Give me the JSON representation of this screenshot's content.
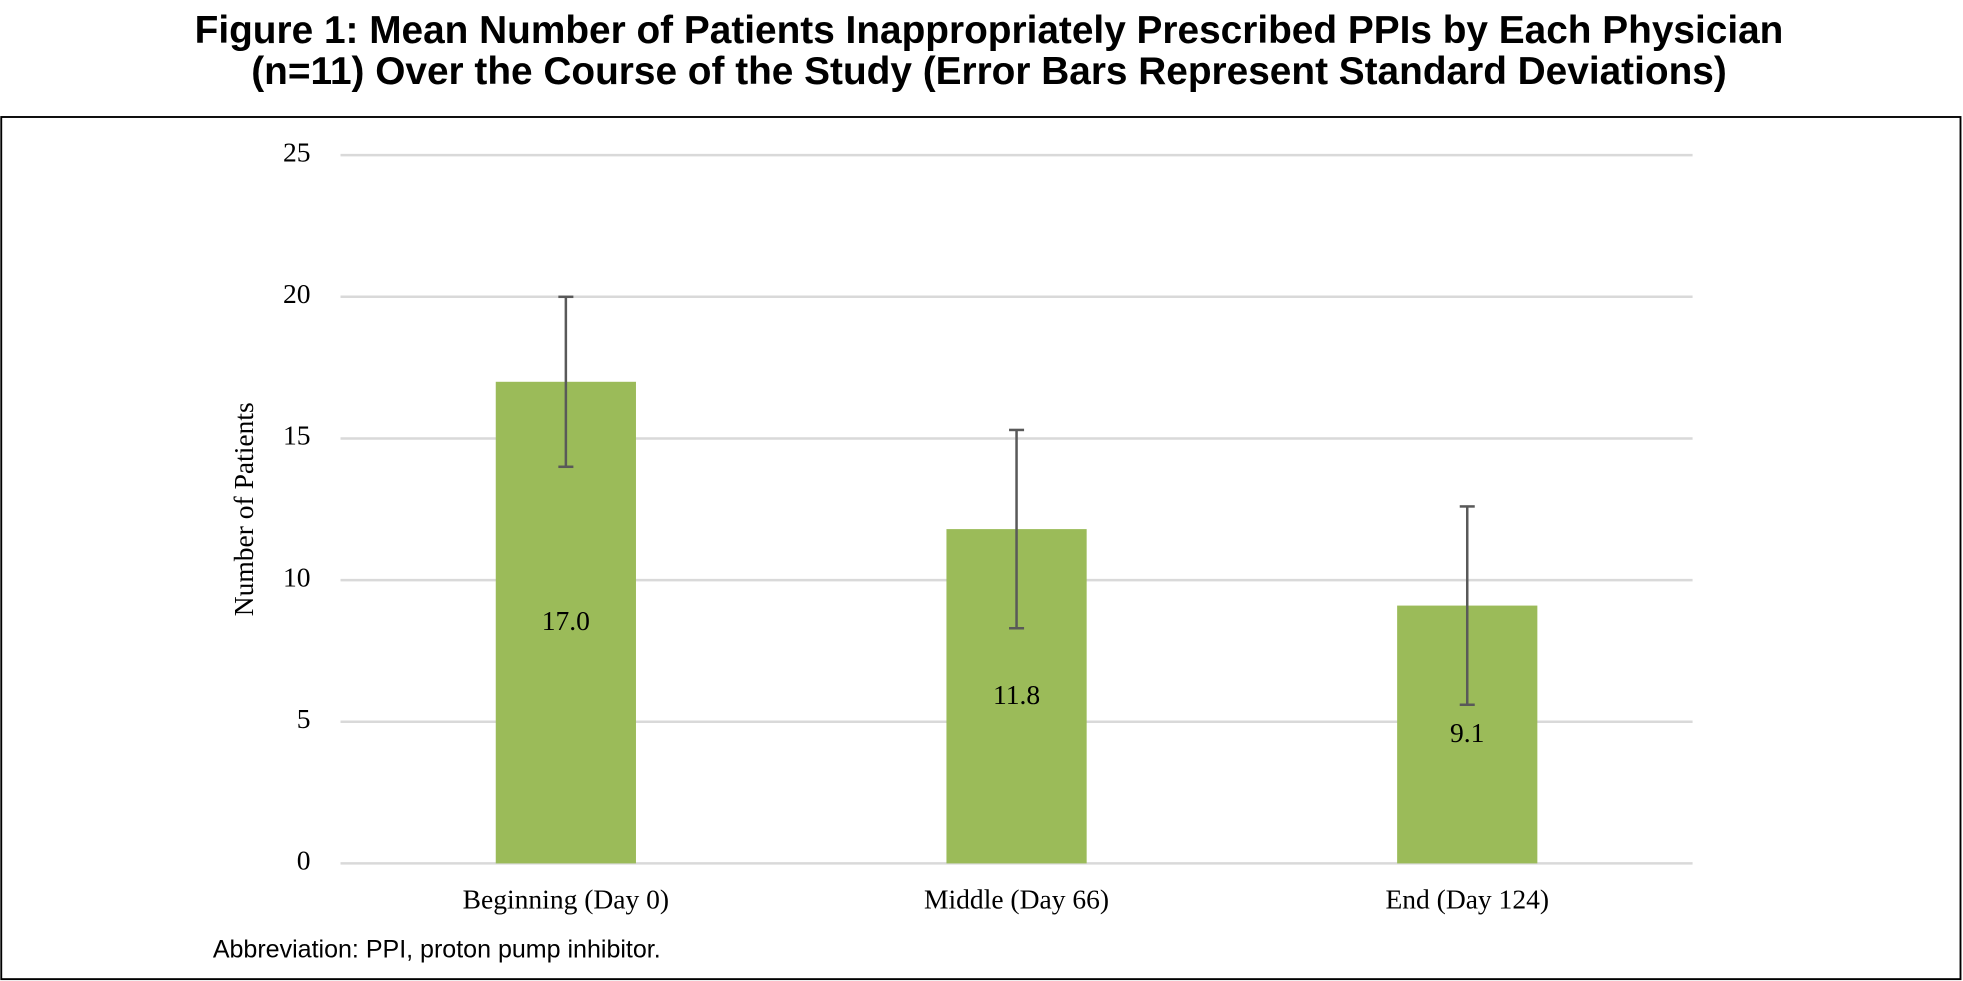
{
  "chart_data": {
    "type": "bar",
    "title": [
      "Figure 1: Mean Number of Patients Inappropriately Prescribed PPIs by Each Physician",
      "(n=11) Over the Course of the Study (Error Bars Represent Standard Deviations)"
    ],
    "y_label": "Number of Patients",
    "categories": [
      "Beginning (Day 0)",
      "Middle (Day 66)",
      "End (Day 124)"
    ],
    "values": [
      17.0,
      11.8,
      9.1
    ],
    "value_labels": [
      "17.0",
      "11.8",
      "9.1"
    ],
    "errors": [
      3.0,
      3.5,
      3.5
    ],
    "color": "#9bbb59",
    "error_color": "#595959",
    "ylim": [
      0,
      25
    ],
    "yticks": [
      0,
      5,
      10,
      15,
      20,
      25
    ],
    "grid": true,
    "footnote": "Abbreviation: PPI, proton pump inhibitor."
  }
}
